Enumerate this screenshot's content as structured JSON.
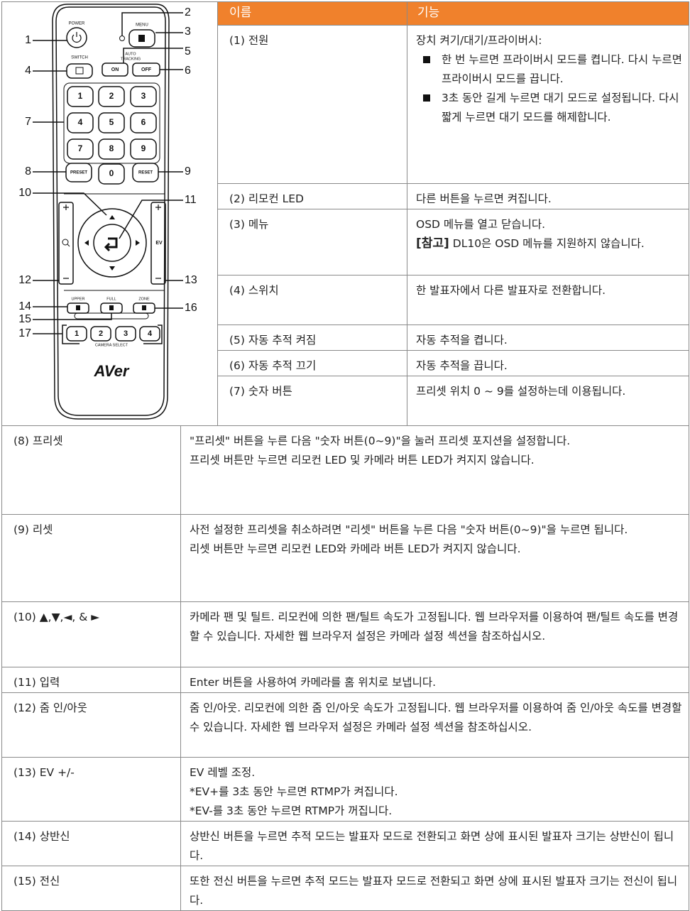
{
  "remote": {
    "callouts": [
      "1",
      "2",
      "3",
      "4",
      "5",
      "6",
      "7",
      "8",
      "9",
      "10",
      "11",
      "12",
      "13",
      "14",
      "15",
      "16",
      "17"
    ],
    "labels": {
      "power": "POWER",
      "menu": "MENU",
      "switch": "SWITCH",
      "auto_tracking": [
        "AUTO",
        "TRACKING"
      ],
      "on": "ON",
      "off": "OFF",
      "preset": "PRESET",
      "reset": "RESET",
      "ev": "EV",
      "upper": "UPPER",
      "full": "FULL",
      "zone": "ZONE",
      "camera_select": "CAMERA SELECT",
      "brand": "AVer"
    },
    "keypad": [
      "1",
      "2",
      "3",
      "4",
      "5",
      "6",
      "7",
      "8",
      "9",
      "0"
    ],
    "camera_buttons": [
      "1",
      "2",
      "3",
      "4"
    ]
  },
  "table": {
    "header": [
      "이름",
      "기능"
    ],
    "rows": [
      {
        "name": "(1) 전원",
        "function": "장치 켜기/대기/프라이버시:",
        "bullets": [
          "한 번 누르면 프라이버시 모드를 켭니다. 다시 누르면 프라이버시 모드를 끕니다.",
          "3초 동안 길게 누르면 대기 모드로 설정됩니다. 다시 짧게 누르면 대기 모드를 해제합니다."
        ]
      },
      {
        "name": "(2) 리모컨 LED",
        "function": "다른 버튼을 누르면 켜집니다."
      },
      {
        "name": "(3) 메뉴",
        "function": "OSD 메뉴를 열고 닫습니다.",
        "note_label": "[참고]",
        "note": "DL10은 OSD 메뉴를 지원하지 않습니다."
      },
      {
        "name": "(4) 스위치",
        "function": "한 발표자에서 다른 발표자로 전환합니다."
      },
      {
        "name": "(5) 자동 추적 켜짐",
        "function": "자동 추적을 켭니다."
      },
      {
        "name": "(6) 자동 추적 끄기",
        "function": "자동 추적을 끕니다."
      },
      {
        "name": "(7) 숫자 버튼",
        "function": "프리셋 위치 0 ~ 9를 설정하는데 이용됩니다."
      },
      {
        "name": "(8) 프리셋",
        "function": [
          "\"프리셋\" 버튼을 누른 다음 \"숫자 버튼(0~9)\"을 눌러 프리셋 포지션을 설정합니다.",
          "프리셋 버튼만 누르면 리모컨 LED 및 카메라 버튼 LED가 켜지지 않습니다."
        ]
      },
      {
        "name": "(9) 리셋",
        "function": [
          "사전 설정한 프리셋을 취소하려면 \"리셋\" 버튼을 누른 다음 \"숫자 버튼(0~9)\"을 누르면 됩니다.",
          "리셋 버튼만 누르면 리모컨 LED와 카메라 버튼 LED가 켜지지 않습니다."
        ]
      },
      {
        "name": "(10) ▲,▼,◄, & ►",
        "function": [
          "카메라 팬 및 틸트. 리모컨에 의한 팬/틸트 속도가 고정됩니다. 웹 브라우저를 이용하여 팬/틸트 속도를 변경할 수 있습니다. 자세한 웹 브라우저 설정은 카메라 설정 섹션을 참조하십시오."
        ]
      },
      {
        "name": "(11) 입력",
        "function": [
          "Enter 버튼을 사용하여 카메라를 홈 위치로 보냅니다."
        ]
      },
      {
        "name": "(12) 줌 인/아웃",
        "function": [
          "줌 인/아웃. 리모컨에 의한 줌 인/아웃 속도가 고정됩니다. 웹 브라우저를 이용하여 줌 인/아웃 속도를 변경할 수 있습니다. 자세한 웹 브라우저 설정은 카메라 설정 섹션을 참조하십시오."
        ]
      },
      {
        "name": "(13) EV +/-",
        "function": [
          "EV 레벨 조정.",
          "*EV+를 3초 동안 누르면 RTMP가 켜집니다.",
          "*EV-를 3초 동안 누르면 RTMP가 꺼집니다."
        ]
      },
      {
        "name": "(14) 상반신",
        "function": [
          "상반신 버튼을 누르면 추적 모드는 발표자 모드로 전환되고 화면 상에 표시된 발표자 크기는 상반신이 됩니다."
        ]
      },
      {
        "name": "(15) 전신",
        "function": [
          "또한 전신 버튼을 누르면 추적 모드는 발표자 모드로 전환되고 화면 상에 표시된 발표자 크기는 전신이 됩니다."
        ]
      }
    ]
  }
}
